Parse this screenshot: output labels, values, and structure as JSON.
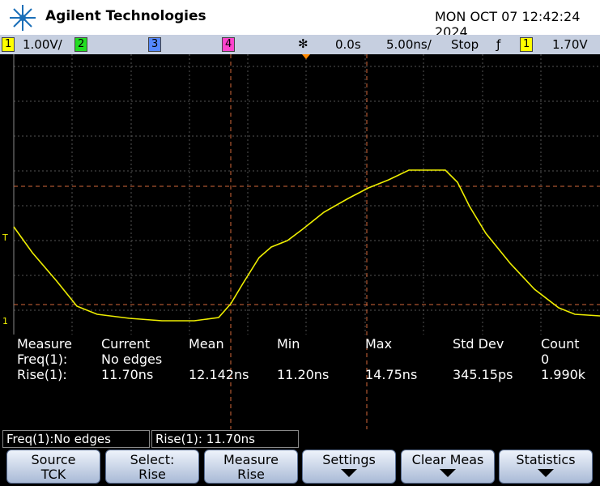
{
  "header": {
    "brand": "Agilent Technologies",
    "datetime": "MON OCT 07 12:42:24 2024"
  },
  "status_bar": {
    "ch1": "1",
    "ch1_scale": "1.00V/",
    "ch2": "2",
    "ch3": "3",
    "ch4": "4",
    "time_delay": "0.0s",
    "time_scale": "5.00ns/",
    "run_state": "Stop",
    "trigger_channel": "1",
    "trigger_level": "1.70V"
  },
  "markers": {
    "trigger": "T",
    "ground": "1"
  },
  "measurements": {
    "headers": [
      "Measure",
      "Current",
      "Mean",
      "Min",
      "Max",
      "Std Dev",
      "Count"
    ],
    "freq": {
      "label": "Freq(1):",
      "current": "No edges",
      "count": "0"
    },
    "rise": {
      "label": "Rise(1):",
      "current": "11.70ns",
      "mean": "12.142ns",
      "min": "11.20ns",
      "max": "14.75ns",
      "std_dev": "345.15ps",
      "count": "1.990k"
    }
  },
  "info_line": [
    "Freq(1):No edges",
    "Rise(1): 11.70ns"
  ],
  "softkeys": [
    {
      "label": "Source",
      "value": "TCK"
    },
    {
      "label": "Select:",
      "value": "Rise"
    },
    {
      "label": "Measure",
      "value": "Rise"
    },
    {
      "label": "Settings"
    },
    {
      "label": "Clear Meas"
    },
    {
      "label": "Statistics"
    }
  ]
}
